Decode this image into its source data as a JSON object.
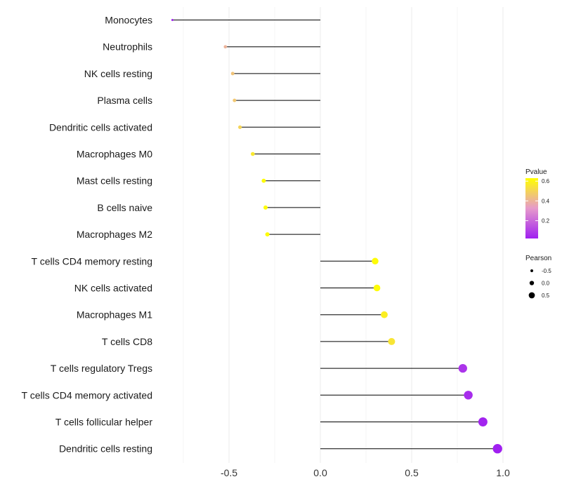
{
  "chart_data": {
    "type": "lollipop",
    "categories": [
      "Monocytes",
      "Neutrophils",
      "NK cells resting",
      "Plasma cells",
      "Dendritic cells activated",
      "Macrophages M0",
      "Mast cells resting",
      "B cells naive",
      "Macrophages M2",
      "T cells CD4 memory resting",
      "NK cells activated",
      "Macrophages M1",
      "T cells CD8",
      "T cells regulatory  Tregs ",
      "T cells CD4 memory activated",
      "T cells follicular helper",
      "Dendritic cells resting"
    ],
    "pearson": [
      -0.81,
      -0.52,
      -0.48,
      -0.47,
      -0.44,
      -0.37,
      -0.31,
      -0.3,
      -0.29,
      0.3,
      0.31,
      0.35,
      0.39,
      0.78,
      0.81,
      0.89,
      0.97
    ],
    "pvalue": [
      0.02,
      0.4,
      0.45,
      0.46,
      0.5,
      0.56,
      0.62,
      0.62,
      0.62,
      0.62,
      0.62,
      0.58,
      0.55,
      0.07,
      0.05,
      0.03,
      0.02
    ],
    "xlim": [
      -0.82,
      1.0
    ],
    "x_ticks": [
      -0.5,
      0.0,
      0.5,
      1.0
    ],
    "x_tick_labels": [
      "-0.5",
      "0.0",
      "0.5",
      "1.0"
    ],
    "color_legend": {
      "title": "Pvalue",
      "ticks": [
        0.6,
        0.4,
        0.2
      ],
      "tick_labels": [
        "0.6",
        "0.4",
        "0.2"
      ],
      "low_color": "#a020f0",
      "mid_color": "#e69acb",
      "high_color": "#ffff00",
      "range": [
        0.02,
        0.63
      ]
    },
    "size_legend": {
      "title": "Pearson",
      "values": [
        -0.5,
        0.0,
        0.5
      ],
      "labels": [
        "-0.5",
        "0.0",
        "0.5"
      ]
    }
  }
}
